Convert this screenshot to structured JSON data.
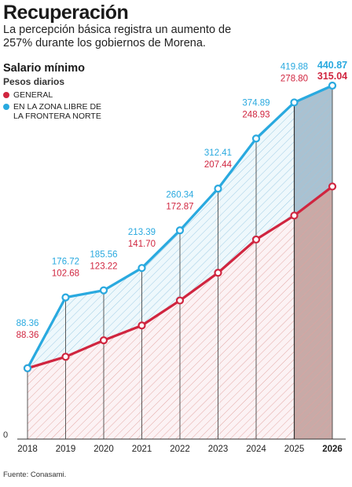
{
  "title": "Recuperación",
  "subtitle": "La percepción básica registra un aumento de 257% durante los gobiernos de Morena.",
  "chart_title": "Salario mínimo",
  "chart_subtitle": "Pesos diarios",
  "legend": [
    {
      "label": "GENERAL",
      "color": "#d0253f"
    },
    {
      "label": "EN LA ZONA LIBRE DE LA FRONTERA NORTE",
      "color": "#29a9df"
    }
  ],
  "source": "Fuente: Conasami.",
  "chart_data": {
    "type": "line",
    "x": [
      "2018",
      "2019",
      "2020",
      "2021",
      "2022",
      "2023",
      "2024",
      "2025",
      "2026"
    ],
    "y_zero_label": "0",
    "series": [
      {
        "name": "GENERAL",
        "color": "#d0253f",
        "values": [
          88.36,
          102.68,
          123.22,
          141.7,
          172.87,
          207.44,
          248.93,
          278.8,
          315.04
        ],
        "labels": [
          "88.36",
          "102.68",
          "123.22",
          "141.70",
          "172.87",
          "207.44",
          "248.93",
          "278.80",
          "315.04"
        ]
      },
      {
        "name": "EN LA ZONA LIBRE DE LA FRONTERA NORTE",
        "color": "#29a9df",
        "values": [
          88.36,
          176.72,
          185.56,
          213.39,
          260.34,
          312.41,
          374.89,
          419.88,
          440.87
        ],
        "labels": [
          "88.36",
          "176.72",
          "185.56",
          "213.39",
          "260.34",
          "312.41",
          "374.89",
          "419.88",
          "440.87"
        ]
      }
    ],
    "highlight_last": true,
    "ylim": [
      0,
      440.87
    ],
    "grid": false
  }
}
